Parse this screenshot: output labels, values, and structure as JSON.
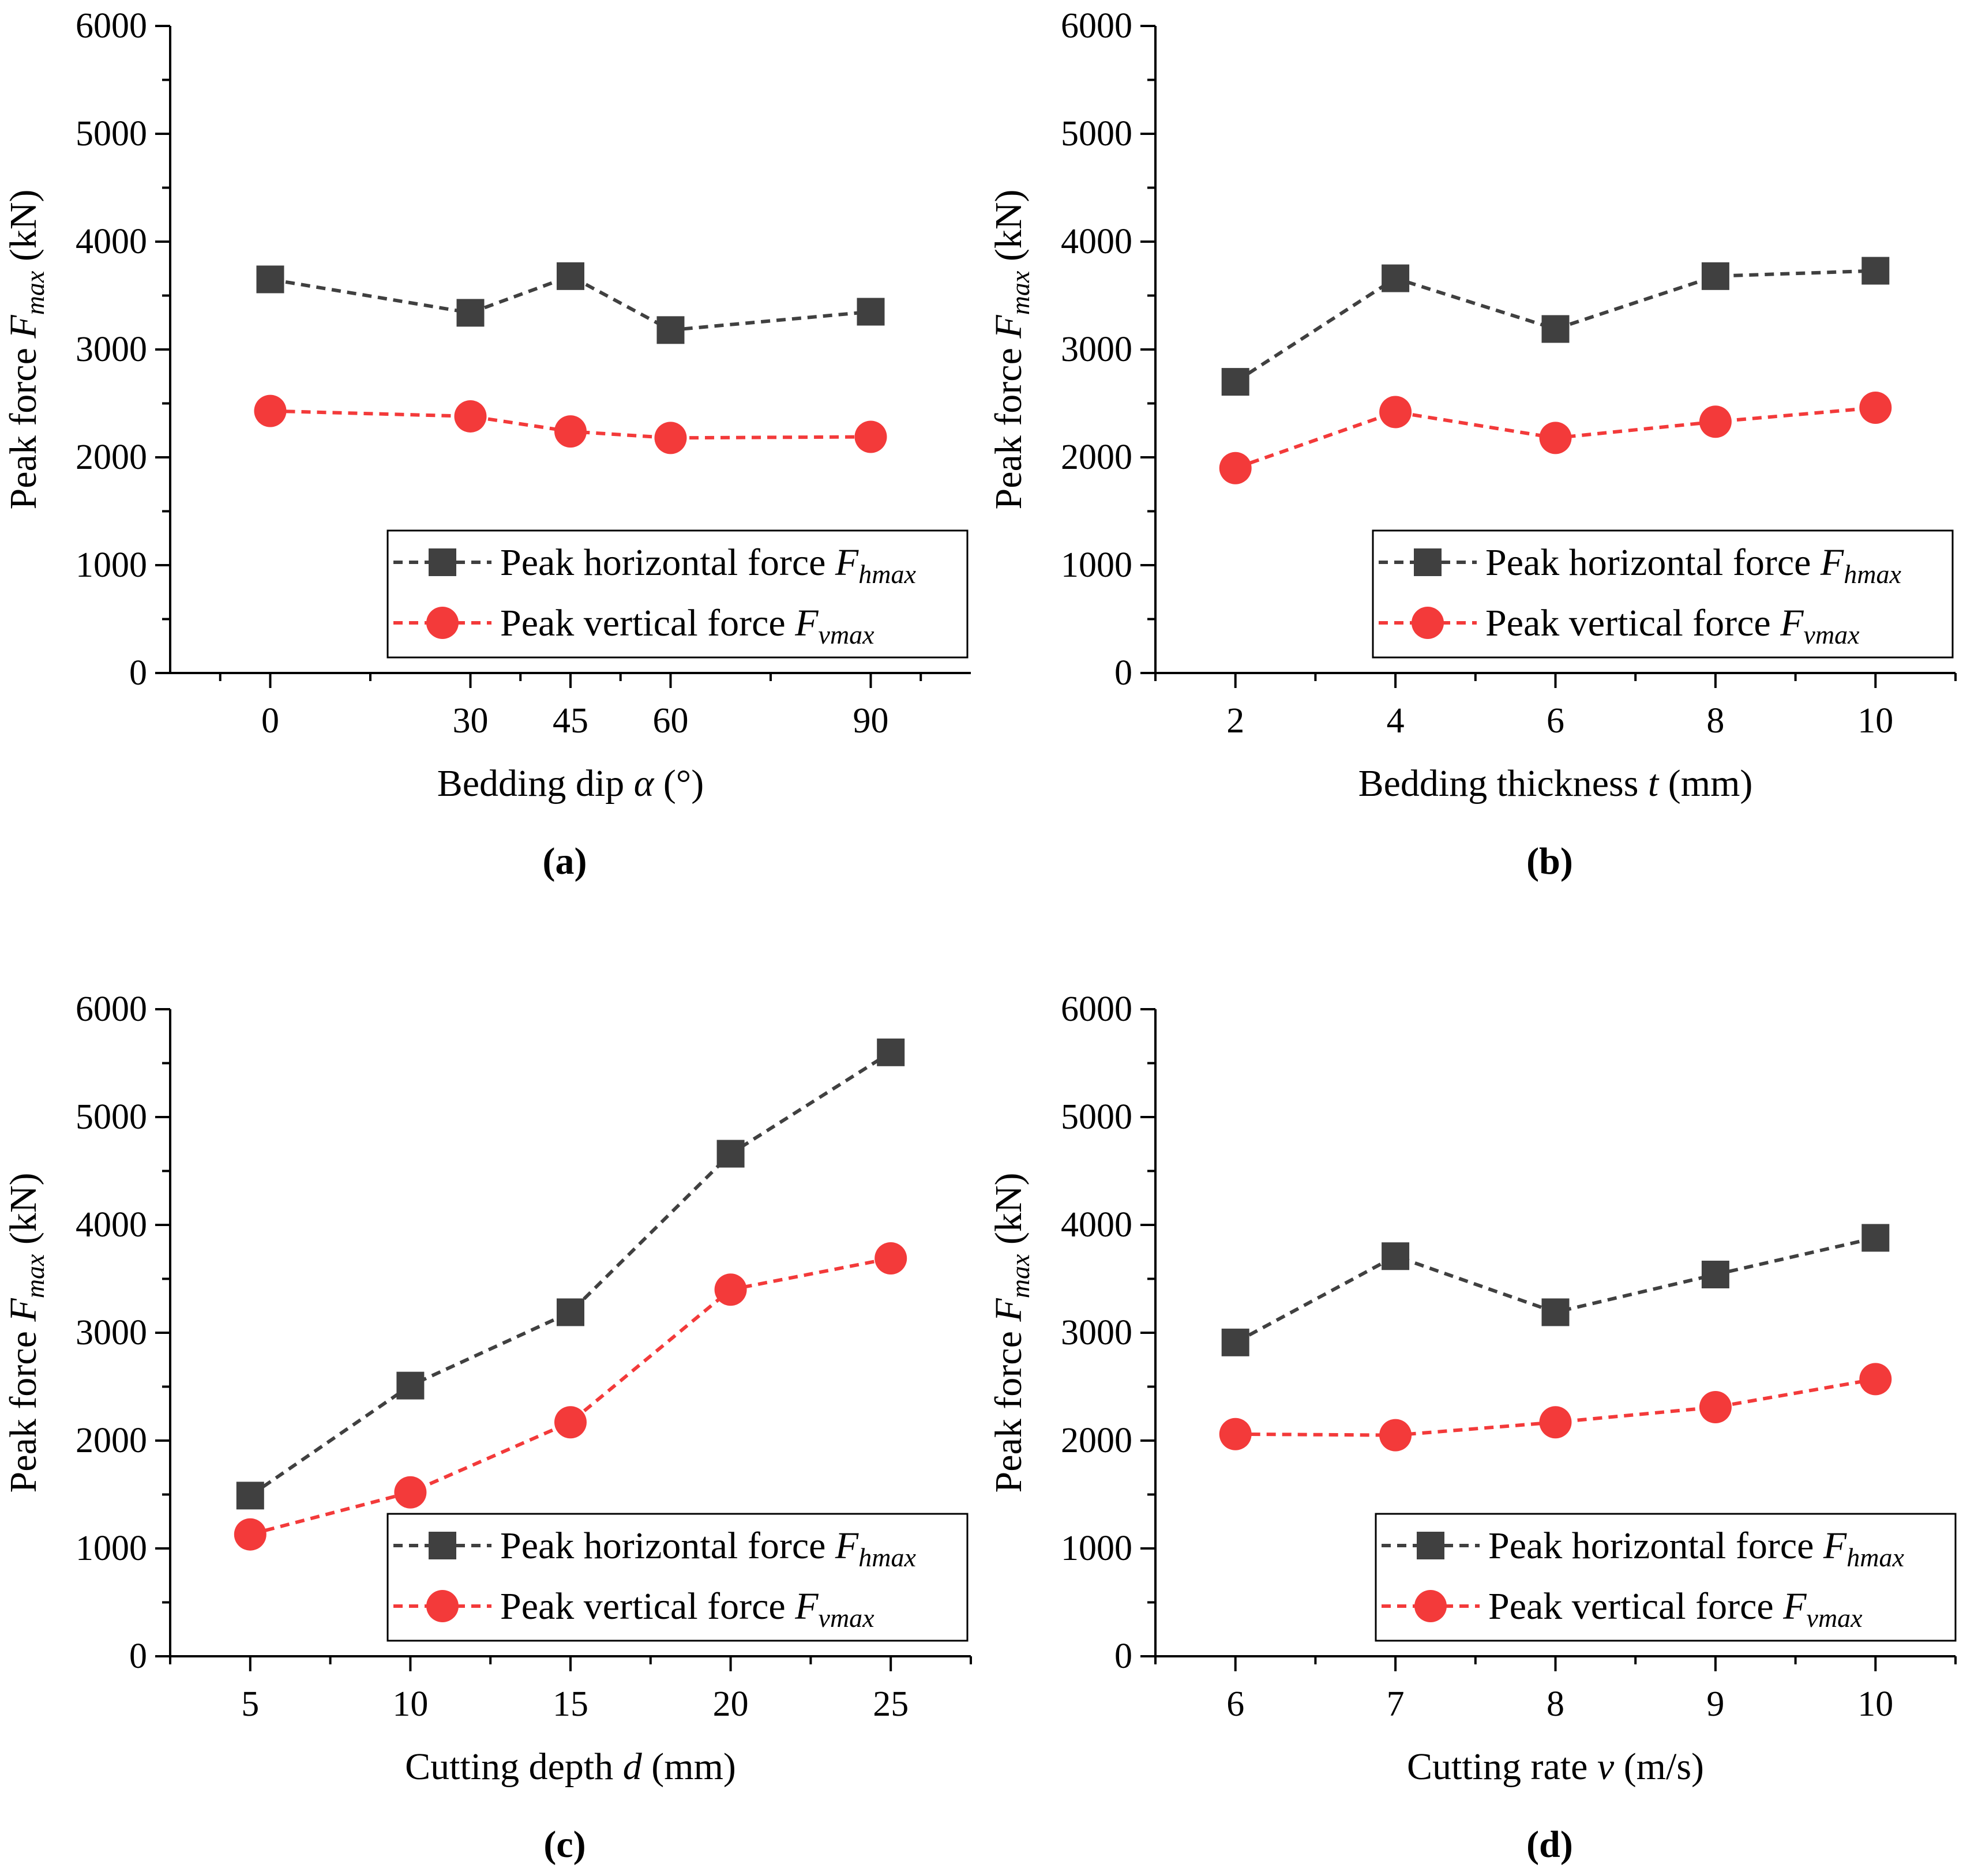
{
  "figure": {
    "y_axis_title": {
      "prefix": "Peak force ",
      "var": "F",
      "sub": "max",
      "suffix": " (kN)"
    },
    "legend": {
      "horizontal": {
        "prefix": "Peak horizontal force ",
        "var": "F",
        "sub": "hmax"
      },
      "vertical": {
        "prefix": "Peak vertical force ",
        "var": "F",
        "sub": "vmax"
      }
    },
    "colors": {
      "horizontal": "#404040",
      "vertical": "#f33a3a"
    }
  },
  "chart_data": [
    {
      "type": "line",
      "panel_label": "(a)",
      "xlabel": {
        "prefix": "Bedding dip ",
        "var": "α",
        "suffix": " (°)"
      },
      "ylabel": "Peak force Fmax (kN)",
      "xlim": [
        -15,
        105
      ],
      "ylim": [
        0,
        6000
      ],
      "xticks": [
        0,
        30,
        45,
        60,
        90
      ],
      "xminor": [
        -7.5,
        15,
        37.5,
        52.5,
        75,
        97.5
      ],
      "yticks": [
        0,
        1000,
        2000,
        3000,
        4000,
        5000,
        6000
      ],
      "legend_position": "lower-right",
      "series": [
        {
          "name": "Peak horizontal force Fhmax",
          "key": "horizontal",
          "marker": "square",
          "x": [
            0,
            30,
            45,
            60,
            90
          ],
          "values": [
            3650,
            3340,
            3680,
            3180,
            3350
          ]
        },
        {
          "name": "Peak vertical force Fvmax",
          "key": "vertical",
          "marker": "circle",
          "x": [
            0,
            30,
            45,
            60,
            90
          ],
          "values": [
            2430,
            2380,
            2240,
            2180,
            2190
          ]
        }
      ]
    },
    {
      "type": "line",
      "panel_label": "(b)",
      "xlabel": {
        "prefix": "Bedding thickness ",
        "var": "t",
        "suffix": " (mm)"
      },
      "ylabel": "Peak force Fmax (kN)",
      "xlim": [
        1,
        11
      ],
      "ylim": [
        0,
        6000
      ],
      "xticks": [
        2,
        4,
        6,
        8,
        10
      ],
      "xminor": [
        1,
        3,
        5,
        7,
        9,
        11
      ],
      "yticks": [
        0,
        1000,
        2000,
        3000,
        4000,
        5000,
        6000
      ],
      "legend_position": "lower-right",
      "series": [
        {
          "name": "Peak horizontal force Fhmax",
          "key": "horizontal",
          "marker": "square",
          "x": [
            2,
            4,
            6,
            8,
            10
          ],
          "values": [
            2700,
            3660,
            3190,
            3680,
            3730
          ]
        },
        {
          "name": "Peak vertical force Fvmax",
          "key": "vertical",
          "marker": "circle",
          "x": [
            2,
            4,
            6,
            8,
            10
          ],
          "values": [
            1900,
            2420,
            2180,
            2330,
            2460
          ]
        }
      ]
    },
    {
      "type": "line",
      "panel_label": "(c)",
      "xlabel": {
        "prefix": "Cutting depth ",
        "var": "d",
        "suffix": " (mm)"
      },
      "ylabel": "Peak force Fmax (kN)",
      "xlim": [
        2.5,
        27.5
      ],
      "ylim": [
        0,
        6000
      ],
      "xticks": [
        5,
        10,
        15,
        20,
        25
      ],
      "xminor": [
        2.5,
        7.5,
        12.5,
        17.5,
        22.5,
        27.5
      ],
      "yticks": [
        0,
        1000,
        2000,
        3000,
        4000,
        5000,
        6000
      ],
      "legend_position": "lower-right",
      "series": [
        {
          "name": "Peak horizontal force Fhmax",
          "key": "horizontal",
          "marker": "square",
          "x": [
            5,
            10,
            15,
            20,
            25
          ],
          "values": [
            1490,
            2510,
            3190,
            4660,
            5600
          ]
        },
        {
          "name": "Peak vertical force Fvmax",
          "key": "vertical",
          "marker": "circle",
          "x": [
            5,
            10,
            15,
            20,
            25
          ],
          "values": [
            1130,
            1520,
            2170,
            3400,
            3690
          ]
        }
      ]
    },
    {
      "type": "line",
      "panel_label": "(d)",
      "xlabel": {
        "prefix": "Cutting rate ",
        "var": "v",
        "suffix": " (m/s)"
      },
      "ylabel": "Peak force Fmax (kN)",
      "xlim": [
        5.5,
        10.5
      ],
      "ylim": [
        0,
        6000
      ],
      "xticks": [
        6,
        7,
        8,
        9,
        10
      ],
      "xminor": [
        5.5,
        6.5,
        7.5,
        8.5,
        9.5,
        10.5
      ],
      "yticks": [
        0,
        1000,
        2000,
        3000,
        4000,
        5000,
        6000
      ],
      "legend_position": "lower-right",
      "series": [
        {
          "name": "Peak horizontal force Fhmax",
          "key": "horizontal",
          "marker": "square",
          "x": [
            6,
            7,
            8,
            9,
            10
          ],
          "values": [
            2910,
            3710,
            3190,
            3540,
            3880
          ]
        },
        {
          "name": "Peak vertical force Fvmax",
          "key": "vertical",
          "marker": "circle",
          "x": [
            6,
            7,
            8,
            9,
            10
          ],
          "values": [
            2060,
            2050,
            2170,
            2310,
            2570
          ]
        }
      ]
    }
  ]
}
